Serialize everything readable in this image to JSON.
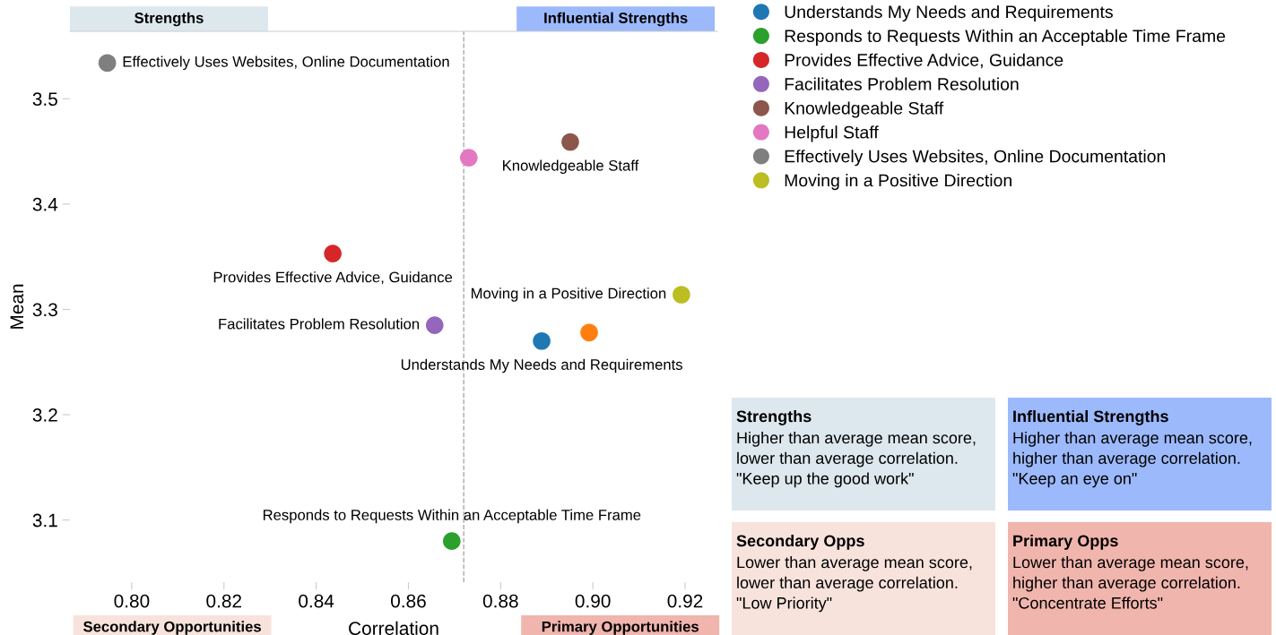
{
  "chart_data": {
    "type": "scatter",
    "xlabel": "Correlation",
    "ylabel": "Mean",
    "xlim": [
      0.7866,
      0.927
    ],
    "ylim": [
      3.041,
      3.564
    ],
    "xticks": [
      {
        "value": 0.8,
        "label": "0.80"
      },
      {
        "value": 0.82,
        "label": "0.82"
      },
      {
        "value": 0.84,
        "label": "0.84"
      },
      {
        "value": 0.86,
        "label": "0.86"
      },
      {
        "value": 0.88,
        "label": "0.88"
      },
      {
        "value": 0.9,
        "label": "0.90"
      },
      {
        "value": 0.92,
        "label": "0.92"
      }
    ],
    "yticks": [
      3.1,
      3.2,
      3.3,
      3.4,
      3.5
    ],
    "grid": false,
    "legend": "top right",
    "marker": "circle",
    "series": [
      {
        "name": "Understands My Needs and Requirements",
        "color": "#1f77b4",
        "x": [
          0.8889
        ],
        "values": [
          3.27
        ]
      },
      {
        "color": "#ff7f0e",
        "x": [
          0.8992
        ],
        "values": [
          3.278
        ]
      },
      {
        "name": "Responds to Requests Within an Acceptable Time Frame",
        "color": "#2ca02c",
        "x": [
          0.8694
        ],
        "values": [
          3.08
        ]
      },
      {
        "name": "Provides Effective Advice, Guidance",
        "color": "#d62728",
        "x": [
          0.8436
        ],
        "values": [
          3.353
        ]
      },
      {
        "name": "Facilitates Problem Resolution",
        "color": "#9467bd",
        "x": [
          0.8657
        ],
        "values": [
          3.285
        ]
      },
      {
        "name": "Knowledgeable Staff",
        "color": "#8c564b",
        "x": [
          0.8951
        ],
        "values": [
          3.459
        ]
      },
      {
        "name": "Helpful Staff",
        "color": "#e377c2",
        "x": [
          0.8731
        ],
        "values": [
          3.444
        ]
      },
      {
        "name": "Effectively Uses Websites, Online Documentation",
        "color": "#7f7f7f",
        "x": [
          0.7947
        ],
        "values": [
          3.534
        ]
      },
      {
        "name": "Moving in a Positive Direction",
        "color": "#bcbd22",
        "x": [
          0.9192
        ],
        "values": [
          3.314
        ]
      }
    ],
    "ref_lines": [
      {
        "axis": "x",
        "value": 0.872,
        "color": "#aaaaaa",
        "line_style": "dashed"
      }
    ],
    "annotations": [
      "Strengths",
      "Influential Strengths",
      "Secondary Opportunities",
      "Primary Opportunities",
      "Strengths\nHigher than average mean score,\nlower than average correlation.\n\"Keep up the good work\"",
      "Influential Strengths\nHigher than average mean score,\nhigher than average correlation.\n\"Keep an eye on\"",
      "Secondary Opps\nLower than average mean score,\nlower than average correlation.\n\"Low Priority\"",
      "Primary Opps\nLower than average mean score,\nhigher than average correlation.\n\"Concentrate Efforts\"",
      {
        "text": "Understands My Needs and Requirements",
        "x": 0.8889,
        "y": 3.27
      },
      {
        "text": "Responds to Requests Within an Acceptable Time Frame",
        "x": 0.8694,
        "y": 3.08
      },
      {
        "text": "Provides Effective Advice, Guidance",
        "x": 0.8436,
        "y": 3.353
      },
      {
        "text": "Facilitates Problem Resolution",
        "x": 0.8657,
        "y": 3.285
      },
      {
        "text": "Knowledgeable Staff",
        "x": 0.8951,
        "y": 3.459
      },
      {
        "text": "Effectively Uses Websites, Online Documentation",
        "x": 0.7947,
        "y": 3.534
      },
      {
        "text": "Moving in a Positive Direction",
        "x": 0.9192,
        "y": 3.314
      }
    ]
  }
}
